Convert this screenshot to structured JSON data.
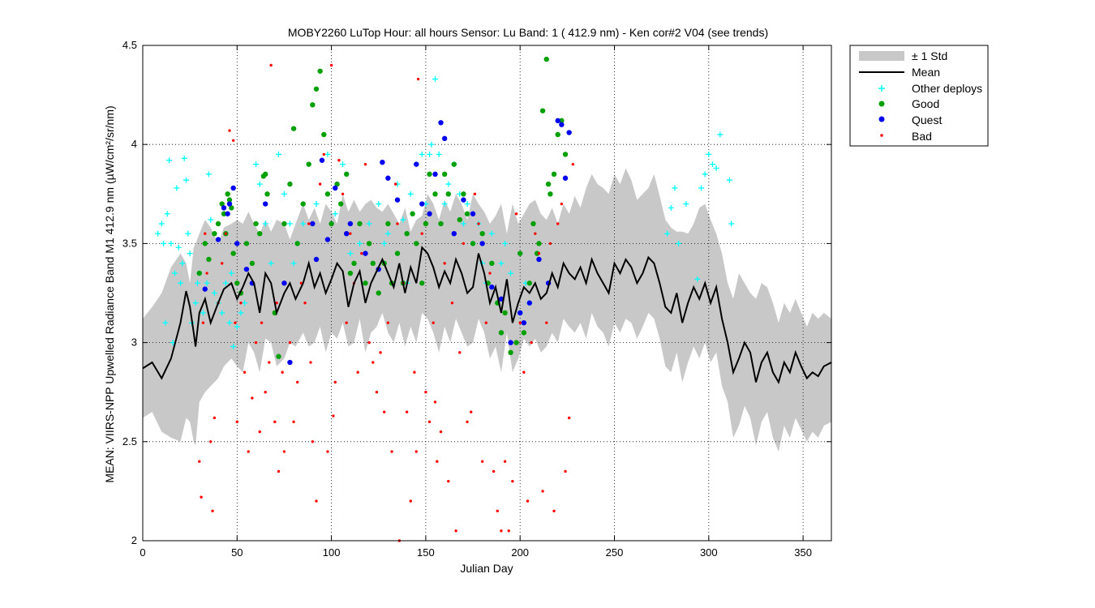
{
  "chart_data": {
    "type": "scatter",
    "title": "MOBY2260   LuTop  Hour: all hours  Sensor: Lu Band: 1 ( 412.9 nm)  - Ken cor#2 V04 (see trends)",
    "xlabel": "Julian Day",
    "ylabel": "MEAN: VIIRS-NPP Upwelled Radiance Band M1 412.9 nm (µW/cm²/sr/nm)",
    "xlim": [
      0,
      365
    ],
    "ylim": [
      2,
      4.5
    ],
    "xticks": [
      0,
      50,
      100,
      150,
      200,
      250,
      300,
      350
    ],
    "yticks": [
      2,
      2.5,
      3,
      3.5,
      4,
      4.5
    ],
    "ytick_labels": [
      "2",
      "2.5",
      "3",
      "3.5",
      "4",
      "4.5"
    ],
    "grid": true,
    "legend_position": "outside-top-right",
    "legend": [
      "± 1 Std",
      "Mean",
      "Other deploys",
      "Good",
      "Quest",
      "Bad"
    ],
    "colors": {
      "std_band": "#c8c8c8",
      "mean": "#000000",
      "other": "#00ffff",
      "good": "#00a000",
      "quest": "#0000ee",
      "bad": "#ff0000"
    },
    "mean": {
      "x": [
        0,
        5,
        10,
        15,
        20,
        23,
        25,
        27,
        28,
        30,
        33,
        36,
        40,
        43,
        47,
        50,
        53,
        56,
        59,
        62,
        65,
        68,
        71,
        75,
        78,
        81,
        85,
        88,
        91,
        94,
        97,
        100,
        103,
        106,
        109,
        112,
        115,
        118,
        121,
        124,
        127,
        130,
        133,
        136,
        139,
        142,
        145,
        148,
        151,
        154,
        157,
        160,
        163,
        166,
        169,
        172,
        175,
        178,
        181,
        184,
        187,
        190,
        193,
        196,
        199,
        202,
        205,
        208,
        211,
        214,
        217,
        220,
        223,
        226,
        229,
        232,
        235,
        238,
        241,
        244,
        247,
        250,
        253,
        256,
        259,
        262,
        265,
        268,
        271,
        274,
        277,
        280,
        283,
        286,
        289,
        292,
        295,
        298,
        301,
        304,
        307,
        310,
        313,
        316,
        319,
        322,
        325,
        328,
        331,
        334,
        337,
        340,
        343,
        346,
        349,
        352,
        355,
        358,
        361,
        365
      ],
      "y": [
        2.87,
        2.9,
        2.82,
        2.92,
        3.1,
        3.26,
        3.18,
        3.05,
        2.98,
        3.15,
        3.22,
        3.1,
        3.2,
        3.27,
        3.3,
        3.22,
        3.28,
        3.35,
        3.3,
        3.15,
        3.35,
        3.3,
        3.15,
        3.25,
        3.3,
        3.22,
        3.3,
        3.4,
        3.28,
        3.35,
        3.25,
        3.32,
        3.4,
        3.36,
        3.18,
        3.3,
        3.36,
        3.2,
        3.3,
        3.36,
        3.42,
        3.35,
        3.28,
        3.4,
        3.25,
        3.38,
        3.3,
        3.48,
        3.45,
        3.38,
        3.28,
        3.36,
        3.3,
        3.42,
        3.35,
        3.25,
        3.28,
        3.45,
        3.35,
        3.2,
        3.28,
        3.15,
        3.32,
        3.1,
        3.2,
        3.28,
        3.25,
        3.3,
        3.22,
        3.25,
        3.35,
        3.28,
        3.4,
        3.35,
        3.32,
        3.38,
        3.3,
        3.42,
        3.35,
        3.3,
        3.25,
        3.4,
        3.35,
        3.42,
        3.38,
        3.3,
        3.35,
        3.43,
        3.4,
        3.3,
        3.18,
        3.15,
        3.25,
        3.1,
        3.2,
        3.28,
        3.22,
        3.3,
        3.2,
        3.28,
        3.12,
        3.0,
        2.85,
        2.92,
        3.0,
        2.95,
        2.8,
        2.9,
        2.95,
        2.85,
        2.8,
        2.9,
        2.85,
        2.95,
        2.88,
        2.82,
        2.85,
        2.83,
        2.88,
        2.9
      ]
    },
    "std_upper": [
      3.12,
      3.18,
      3.25,
      3.38,
      3.45,
      3.4,
      3.3,
      3.48,
      3.5,
      3.55,
      3.62,
      3.58,
      3.5,
      3.58,
      3.6,
      3.62,
      3.6,
      3.66,
      3.6,
      3.55,
      3.62,
      3.56,
      3.62,
      3.6,
      3.52,
      3.6,
      3.7,
      3.62,
      3.68,
      3.6,
      3.7,
      3.66,
      3.6,
      3.75,
      3.66,
      3.72,
      3.66,
      3.7,
      3.72,
      3.68,
      3.66,
      3.7,
      3.65,
      3.6,
      3.68,
      3.56,
      3.62,
      3.64,
      3.75,
      3.7,
      3.62,
      3.72,
      3.66,
      3.75,
      3.7,
      3.62,
      3.75,
      3.7,
      3.66,
      3.6,
      3.64,
      3.7,
      3.55,
      3.7,
      3.6,
      3.65,
      3.7,
      3.72,
      3.65,
      3.62,
      3.68,
      3.6,
      3.7,
      3.65,
      3.74,
      3.68,
      3.78,
      3.85,
      3.8,
      3.78,
      3.75,
      3.85,
      3.8,
      3.88,
      3.82,
      3.72,
      3.75,
      3.78,
      3.85,
      3.74,
      3.62,
      3.58,
      3.56,
      3.56,
      3.55,
      3.6,
      3.68,
      3.7,
      3.62,
      3.55,
      3.45,
      3.3,
      3.22,
      3.35,
      3.3,
      3.25,
      3.22,
      3.3,
      3.28,
      3.2,
      3.1,
      3.2,
      3.15,
      3.22,
      3.15,
      3.08,
      3.15,
      3.12,
      3.15,
      3.12
    ],
    "std_lower": [
      2.62,
      2.65,
      2.55,
      2.52,
      2.5,
      2.62,
      2.6,
      2.5,
      2.48,
      2.7,
      2.75,
      2.78,
      2.82,
      2.88,
      2.92,
      2.88,
      2.85,
      3.0,
      2.95,
      2.85,
      3.02,
      3.0,
      2.88,
      2.92,
      3.0,
      2.98,
      3.05,
      2.98,
      3.0,
      3.08,
      2.95,
      3.05,
      3.02,
      3.1,
      2.98,
      3.0,
      3.12,
      2.95,
      3.05,
      3.08,
      3.15,
      3.05,
      3.0,
      3.1,
      2.98,
      3.08,
      3.0,
      3.15,
      3.12,
      3.05,
      2.95,
      3.08,
      3.0,
      3.12,
      3.05,
      2.98,
      3.0,
      3.12,
      3.05,
      2.92,
      2.98,
      2.85,
      3.05,
      2.85,
      2.92,
      3.02,
      2.98,
      3.02,
      2.95,
      2.98,
      3.05,
      3.0,
      3.12,
      3.08,
      3.05,
      3.1,
      3.02,
      3.15,
      3.08,
      3.05,
      2.98,
      3.1,
      3.05,
      3.12,
      3.1,
      3.02,
      3.08,
      3.15,
      3.12,
      3.02,
      2.88,
      2.85,
      2.95,
      2.8,
      2.9,
      2.98,
      2.92,
      3.0,
      2.9,
      2.95,
      2.78,
      2.7,
      2.52,
      2.58,
      2.68,
      2.62,
      2.48,
      2.6,
      2.65,
      2.52,
      2.45,
      2.58,
      2.52,
      2.62,
      2.56,
      2.5,
      2.55,
      2.52,
      2.58,
      2.6
    ],
    "series": [
      {
        "name": "Other deploys",
        "marker": "plus",
        "x": [
          8,
          10,
          11,
          12,
          13,
          14,
          15,
          16,
          17,
          18,
          19,
          20,
          21,
          22,
          23,
          24,
          25,
          26,
          28,
          29,
          30,
          32,
          34,
          35,
          36,
          38,
          40,
          42,
          44,
          46,
          47,
          48,
          50,
          52,
          54,
          60,
          62,
          65,
          68,
          72,
          75,
          78,
          80,
          82,
          85,
          92,
          98,
          102,
          106,
          110,
          115,
          120,
          125,
          128,
          130,
          135,
          138,
          140,
          142,
          145,
          148,
          150,
          152,
          153,
          155,
          157,
          160,
          162,
          165,
          168,
          170,
          172,
          175,
          178,
          180,
          182,
          185,
          188,
          190,
          192,
          195,
          200,
          203,
          205,
          278,
          280,
          282,
          284,
          288,
          294,
          296,
          298,
          300,
          302,
          304,
          306,
          311,
          312
        ],
        "y": [
          3.55,
          3.6,
          3.5,
          3.1,
          3.65,
          3.92,
          3.5,
          3.0,
          3.35,
          3.78,
          3.48,
          3.3,
          3.4,
          3.93,
          3.82,
          3.55,
          3.45,
          3.1,
          3.2,
          3.3,
          3.35,
          3.15,
          3.3,
          3.85,
          3.62,
          3.25,
          3.2,
          3.15,
          3.3,
          3.1,
          3.35,
          2.98,
          3.08,
          3.15,
          3.2,
          3.9,
          3.8,
          3.6,
          3.4,
          3.95,
          3.75,
          3.6,
          3.4,
          3.5,
          3.6,
          3.7,
          3.95,
          3.65,
          3.9,
          3.45,
          3.5,
          3.6,
          3.7,
          3.5,
          3.55,
          3.8,
          3.62,
          3.3,
          3.75,
          3.9,
          3.95,
          3.7,
          3.95,
          4.0,
          4.33,
          3.95,
          3.7,
          3.8,
          3.9,
          3.75,
          3.6,
          3.7,
          3.5,
          3.6,
          3.4,
          3.3,
          3.55,
          3.2,
          3.4,
          3.5,
          3.35,
          3.15,
          3.3,
          3.2,
          3.55,
          3.68,
          3.78,
          3.5,
          3.7,
          3.32,
          3.78,
          3.85,
          3.95,
          3.9,
          3.88,
          4.05,
          3.82,
          3.6
        ]
      },
      {
        "name": "Good",
        "marker": "dot",
        "x": [
          30,
          33,
          35,
          38,
          40,
          42,
          43,
          44,
          45,
          46,
          47,
          48,
          50,
          52,
          55,
          58,
          60,
          62,
          64,
          65,
          66,
          70,
          72,
          75,
          78,
          80,
          82,
          85,
          88,
          90,
          92,
          94,
          96,
          98,
          100,
          103,
          105,
          108,
          110,
          112,
          115,
          118,
          120,
          122,
          125,
          128,
          130,
          132,
          135,
          138,
          140,
          143,
          145,
          148,
          150,
          152,
          155,
          158,
          160,
          162,
          165,
          168,
          170,
          172,
          175,
          180,
          183,
          185,
          188,
          190,
          192,
          195,
          198,
          200,
          202,
          205,
          207,
          209,
          210,
          212,
          214,
          215,
          216,
          218,
          220,
          222,
          224
        ],
        "y": [
          3.35,
          3.5,
          3.42,
          3.55,
          3.6,
          3.7,
          3.65,
          3.55,
          3.75,
          3.72,
          3.68,
          3.45,
          3.3,
          3.25,
          3.5,
          3.4,
          3.6,
          3.55,
          3.84,
          3.85,
          3.75,
          3.15,
          2.93,
          3.6,
          3.8,
          4.08,
          3.5,
          3.7,
          3.9,
          4.2,
          4.28,
          4.37,
          4.05,
          3.75,
          3.6,
          3.8,
          3.7,
          3.85,
          3.35,
          3.4,
          3.6,
          3.3,
          3.5,
          3.4,
          3.25,
          3.4,
          3.6,
          3.3,
          3.45,
          3.3,
          3.55,
          3.65,
          3.5,
          3.3,
          3.6,
          3.85,
          3.75,
          3.6,
          3.85,
          3.75,
          3.9,
          3.62,
          3.75,
          3.65,
          3.5,
          3.55,
          3.3,
          3.4,
          3.2,
          3.05,
          3.15,
          2.95,
          3.0,
          3.45,
          3.05,
          3.3,
          3.6,
          3.45,
          3.5,
          4.17,
          4.43,
          3.8,
          3.75,
          3.85,
          4.05,
          4.12,
          3.95
        ]
      },
      {
        "name": "Quest",
        "marker": "dot",
        "x": [
          33,
          40,
          43,
          45,
          46,
          48,
          50,
          55,
          58,
          65,
          75,
          78,
          90,
          92,
          95,
          98,
          102,
          108,
          110,
          118,
          125,
          127,
          130,
          135,
          145,
          148,
          152,
          155,
          158,
          160,
          165,
          170,
          175,
          180,
          185,
          190,
          195,
          200,
          202,
          205,
          210,
          215,
          220,
          222,
          224,
          226
        ],
        "y": [
          3.27,
          3.52,
          3.68,
          3.65,
          3.7,
          3.78,
          3.5,
          3.37,
          3.3,
          3.7,
          3.3,
          2.9,
          3.6,
          3.42,
          3.92,
          3.52,
          3.78,
          3.55,
          3.6,
          3.45,
          3.37,
          3.91,
          3.83,
          3.72,
          3.9,
          3.7,
          3.65,
          3.85,
          4.11,
          4.03,
          3.55,
          3.72,
          3.65,
          3.5,
          3.28,
          3.22,
          3.0,
          3.15,
          3.1,
          3.2,
          3.42,
          3.3,
          4.12,
          4.1,
          3.83,
          4.06
        ]
      },
      {
        "name": "Bad",
        "marker": "dot-small",
        "x": [
          30,
          31,
          32,
          33,
          34,
          36,
          37,
          38,
          40,
          42,
          44,
          46,
          48,
          49,
          50,
          52,
          54,
          56,
          58,
          60,
          62,
          63,
          65,
          67,
          68,
          70,
          71,
          72,
          74,
          75,
          78,
          80,
          82,
          84,
          86,
          88,
          89,
          90,
          92,
          94,
          96,
          98,
          100,
          101,
          102,
          104,
          106,
          108,
          110,
          112,
          114,
          116,
          118,
          120,
          122,
          124,
          126,
          128,
          130,
          132,
          134,
          135,
          136,
          138,
          140,
          142,
          144,
          145,
          146,
          148,
          150,
          152,
          154,
          155,
          156,
          158,
          160,
          162,
          164,
          166,
          168,
          170,
          172,
          174,
          176,
          178,
          180,
          182,
          184,
          186,
          188,
          190,
          192,
          194,
          196,
          198,
          200,
          202,
          204,
          206,
          208,
          210,
          212,
          214,
          216,
          218,
          220,
          222,
          224,
          226,
          228
        ],
        "y": [
          2.4,
          2.22,
          3.1,
          3.55,
          3.35,
          2.5,
          2.15,
          2.62,
          3.2,
          3.4,
          3.55,
          4.07,
          4.02,
          3.1,
          2.6,
          3.2,
          2.85,
          2.45,
          2.72,
          3.0,
          2.55,
          3.1,
          2.75,
          2.9,
          4.4,
          2.6,
          3.2,
          2.35,
          2.85,
          2.45,
          3.0,
          2.6,
          2.8,
          3.3,
          3.2,
          3.6,
          2.9,
          2.5,
          2.2,
          3.8,
          3.95,
          2.45,
          4.4,
          2.63,
          2.8,
          3.92,
          3.75,
          3.1,
          3.55,
          3.3,
          2.85,
          3.45,
          3.9,
          3.0,
          2.9,
          2.75,
          2.95,
          2.65,
          3.1,
          2.45,
          3.8,
          3.6,
          2.0,
          3.3,
          2.65,
          2.2,
          2.85,
          2.45,
          4.33,
          3.55,
          2.75,
          2.6,
          3.1,
          2.7,
          2.4,
          2.55,
          3.4,
          2.3,
          3.2,
          2.05,
          2.95,
          3.5,
          2.6,
          2.65,
          3.75,
          3.6,
          2.4,
          3.1,
          3.35,
          2.35,
          2.15,
          2.05,
          2.4,
          2.05,
          2.3,
          3.65,
          3.1,
          2.85,
          2.2,
          3.0,
          3.55,
          3.45,
          2.25,
          3.1,
          3.5,
          2.15,
          3.6,
          3.7,
          2.35,
          2.62,
          3.9
        ]
      }
    ]
  }
}
